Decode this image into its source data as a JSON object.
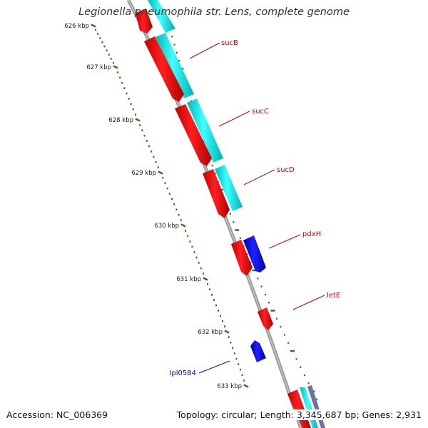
{
  "title": "Legionella pneumophila str. Lens, complete genome",
  "footer": {
    "accession": "Accession: NC_006369",
    "summary": "Topology: circular; Length: 3,345,687 bp; Genes: 2,931"
  },
  "ruler": {
    "labels": [
      "626 kbp",
      "627 kbp",
      "628 kbp",
      "629 kbp",
      "630 kbp",
      "631 kbp",
      "632 kbp",
      "633 kbp"
    ]
  },
  "genes": [
    {
      "name": "sucB",
      "color": "#cc0000"
    },
    {
      "name": "sucC",
      "color": "#cc0000"
    },
    {
      "name": "sucD",
      "color": "#cc0000"
    },
    {
      "name": "pdxH",
      "color": "#cc0000"
    },
    {
      "name": "letE",
      "color": "#cc0000"
    },
    {
      "name": "lpl0584",
      "color": "#0000cc"
    }
  ],
  "colors": {
    "forward_cds": "#ff0000",
    "reverse_cds": "#0000ee",
    "cog_track": "#00e5e5",
    "backbone": "#8a8a8a",
    "ruler_ticks": "#1d7a1d"
  }
}
